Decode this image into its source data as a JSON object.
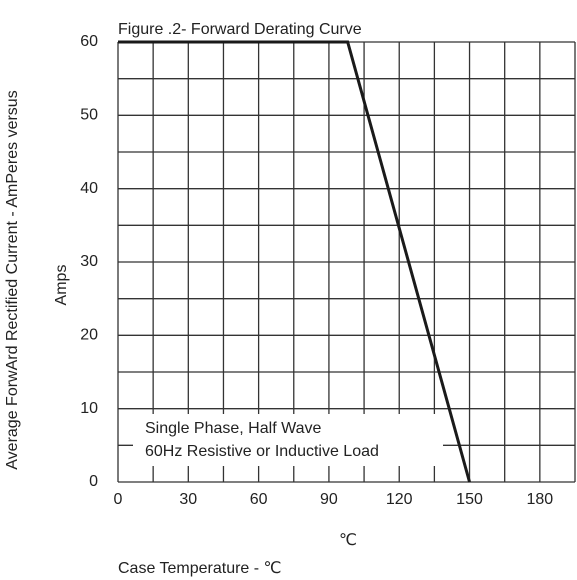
{
  "chart_data": {
    "type": "line",
    "title": "Figure .2- Forward Derating Curve",
    "y_label": "Average ForwArd Rectified Current - AmPeres versus",
    "y_label_2": "Amps",
    "x_unit": "℃",
    "x_label": "Case Temperature - ℃",
    "annotation": [
      "Single Phase, Half Wave",
      "60Hz Resistive or Inductive Load"
    ],
    "x": [
      0,
      98,
      150
    ],
    "series": [
      {
        "color": "#1a1a1a",
        "values": [
          60,
          60,
          0
        ]
      }
    ],
    "xlim": [
      0,
      195
    ],
    "ylim": [
      0,
      60
    ],
    "xticks": [
      0,
      30,
      60,
      90,
      120,
      150,
      180
    ],
    "yticks": [
      0,
      10,
      20,
      30,
      40,
      50,
      60
    ],
    "x_minor_grid": [
      15,
      45,
      75,
      105,
      135,
      165,
      195
    ],
    "y_minor_grid": [
      5,
      15,
      25,
      35,
      45,
      55
    ],
    "grid": true
  }
}
